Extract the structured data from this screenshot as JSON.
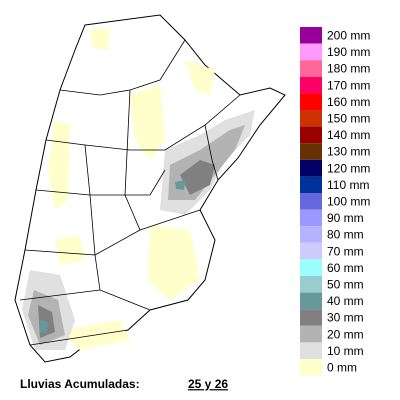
{
  "legend": {
    "items": [
      {
        "label": "200 mm",
        "color": "#990099"
      },
      {
        "label": "190 mm",
        "color": "#ff99ff"
      },
      {
        "label": "180 mm",
        "color": "#ff6699"
      },
      {
        "label": "170 mm",
        "color": "#ff0066"
      },
      {
        "label": "160 mm",
        "color": "#ff0000"
      },
      {
        "label": "150 mm",
        "color": "#cc3300"
      },
      {
        "label": "140 mm",
        "color": "#990000"
      },
      {
        "label": "130 mm",
        "color": "#663300"
      },
      {
        "label": "120 mm",
        "color": "#000066"
      },
      {
        "label": "110 mm",
        "color": "#003399"
      },
      {
        "label": "100 mm",
        "color": "#6666dd"
      },
      {
        "label": "90 mm",
        "color": "#9999ff"
      },
      {
        "label": "80 mm",
        "color": "#b3b3ff"
      },
      {
        "label": "70 mm",
        "color": "#ccccff"
      },
      {
        "label": "60 mm",
        "color": "#99ffff"
      },
      {
        "label": "50 mm",
        "color": "#99cccc"
      },
      {
        "label": "40 mm",
        "color": "#669999"
      },
      {
        "label": "30 mm",
        "color": "#808080"
      },
      {
        "label": "20 mm",
        "color": "#b3b3b3"
      },
      {
        "label": "10 mm",
        "color": "#e0e0e0"
      },
      {
        "label": "0 mm",
        "color": "#ffffcc"
      }
    ]
  },
  "caption": {
    "title": "Lluvias Acumuladas:",
    "dates": "25 y 26"
  }
}
